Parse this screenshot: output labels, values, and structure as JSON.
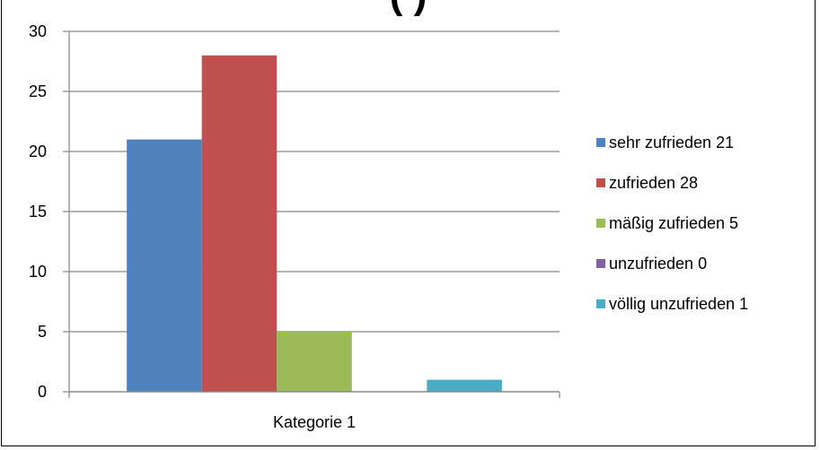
{
  "chart_data": {
    "type": "bar",
    "title": "(                    )",
    "categories": [
      "Kategorie 1"
    ],
    "series": [
      {
        "name": "sehr zufrieden 21",
        "values": [
          21
        ],
        "color": "#4f81bd"
      },
      {
        "name": "zufrieden 28",
        "values": [
          28
        ],
        "color": "#c0504d"
      },
      {
        "name": "mäßig zufrieden 5",
        "values": [
          5
        ],
        "color": "#9bbb59"
      },
      {
        "name": "unzufrieden 0",
        "values": [
          0
        ],
        "color": "#8064a2"
      },
      {
        "name": "völlig unzufrieden 1",
        "values": [
          1
        ],
        "color": "#4bacc6"
      }
    ],
    "ylim": [
      0,
      30
    ],
    "yticks": [
      "0",
      "5",
      "10",
      "15",
      "20",
      "25",
      "30"
    ],
    "grid": true,
    "legend": "right"
  }
}
